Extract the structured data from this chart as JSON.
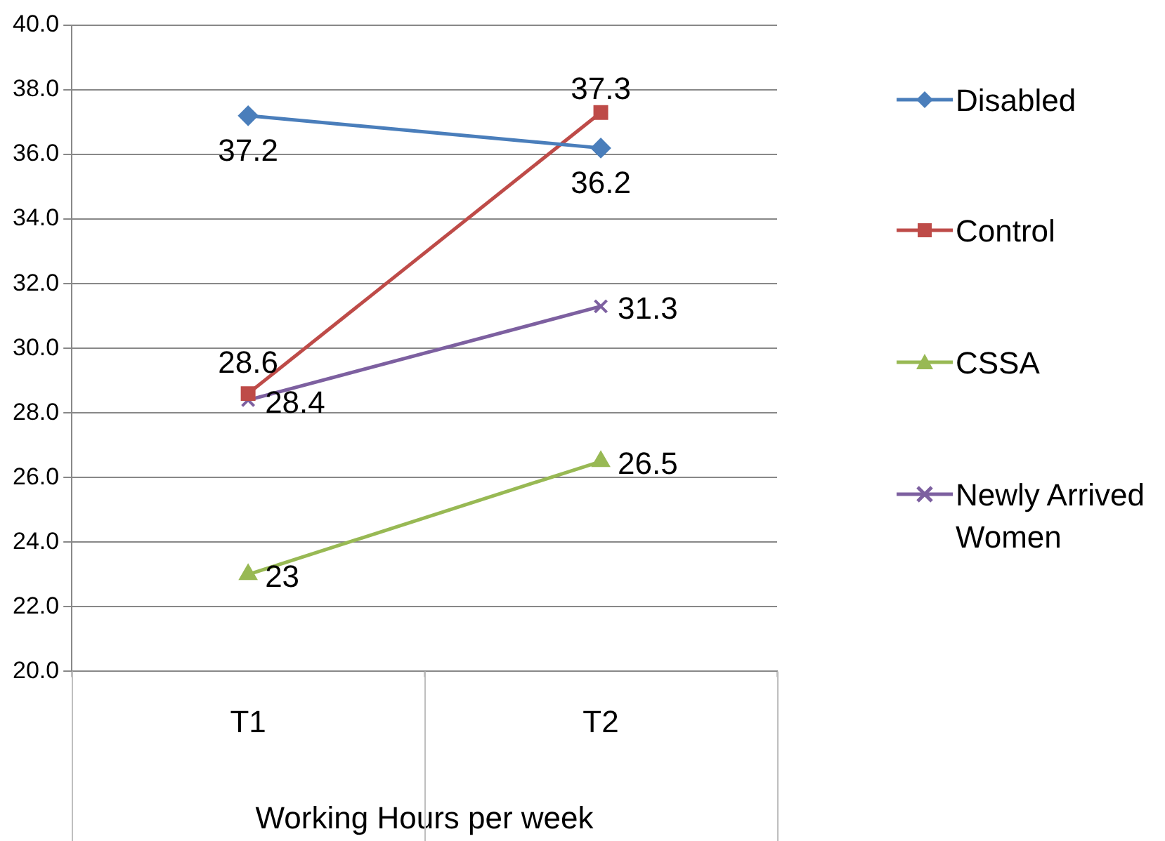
{
  "chart_data": {
    "type": "line",
    "xlabel": "Working Hours per week",
    "categories": [
      "T1",
      "T2"
    ],
    "series": [
      {
        "name": "Disabled",
        "color": "#4a7ebb",
        "marker": "diamond",
        "values": [
          37.2,
          36.2
        ]
      },
      {
        "name": "Control",
        "color": "#be4b48",
        "marker": "square",
        "values": [
          28.6,
          37.3
        ]
      },
      {
        "name": "CSSA",
        "color": "#98b954",
        "marker": "triangle",
        "values": [
          23,
          26.5
        ]
      },
      {
        "name": "Newly Arrived Women",
        "color": "#7d60a0",
        "marker": "cross",
        "values": [
          28.4,
          31.3
        ]
      }
    ],
    "ylim": [
      20,
      40
    ],
    "yticks": [
      {
        "value": 20,
        "label": "20.0"
      },
      {
        "value": 22,
        "label": "22.0"
      },
      {
        "value": 24,
        "label": "24.0"
      },
      {
        "value": 26,
        "label": "26.0"
      },
      {
        "value": 28,
        "label": "28.0"
      },
      {
        "value": 30,
        "label": "30.0"
      },
      {
        "value": 32,
        "label": "32.0"
      },
      {
        "value": 34,
        "label": "34.0"
      },
      {
        "value": 36,
        "label": "36.0"
      },
      {
        "value": 38,
        "label": "38.0"
      },
      {
        "value": 40,
        "label": "40.0"
      }
    ],
    "grid": "y",
    "legend": "right",
    "data_labels": true
  }
}
